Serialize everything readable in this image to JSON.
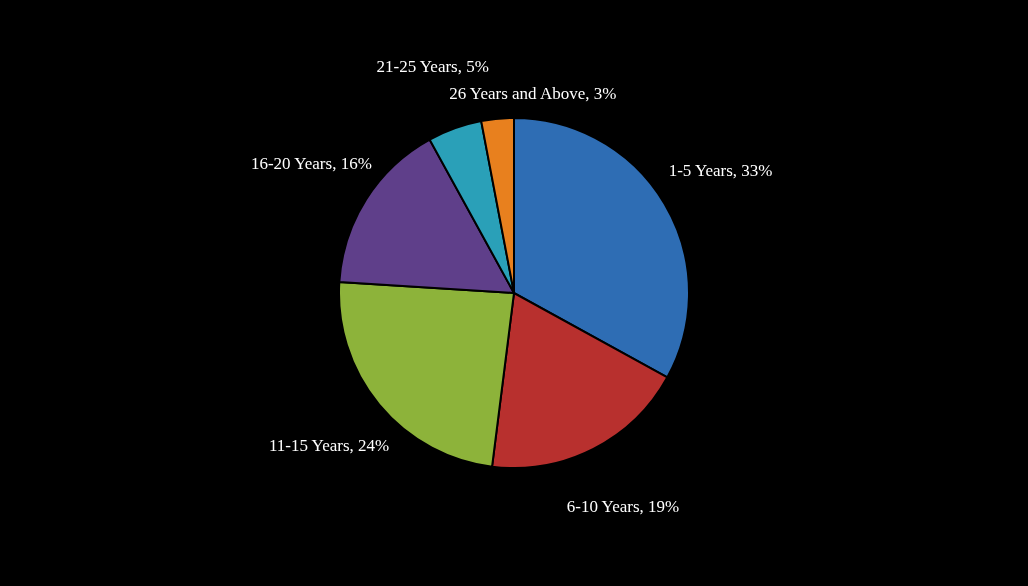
{
  "chart_data": {
    "type": "pie",
    "categories": [
      "1-5 Years",
      "6-10 Years",
      "11-15 Years",
      "16-20 Years",
      "21-25 Years",
      "26 Years and Above"
    ],
    "values": [
      33,
      19,
      24,
      16,
      5,
      3
    ],
    "value_labels": [
      "33%",
      "19%",
      "24%",
      "16%",
      "5%",
      "3%"
    ],
    "colors": [
      "#2e6db4",
      "#b8302e",
      "#8db33a",
      "#5f3f8a",
      "#2aa0b8",
      "#e8801e"
    ],
    "legend": false
  }
}
